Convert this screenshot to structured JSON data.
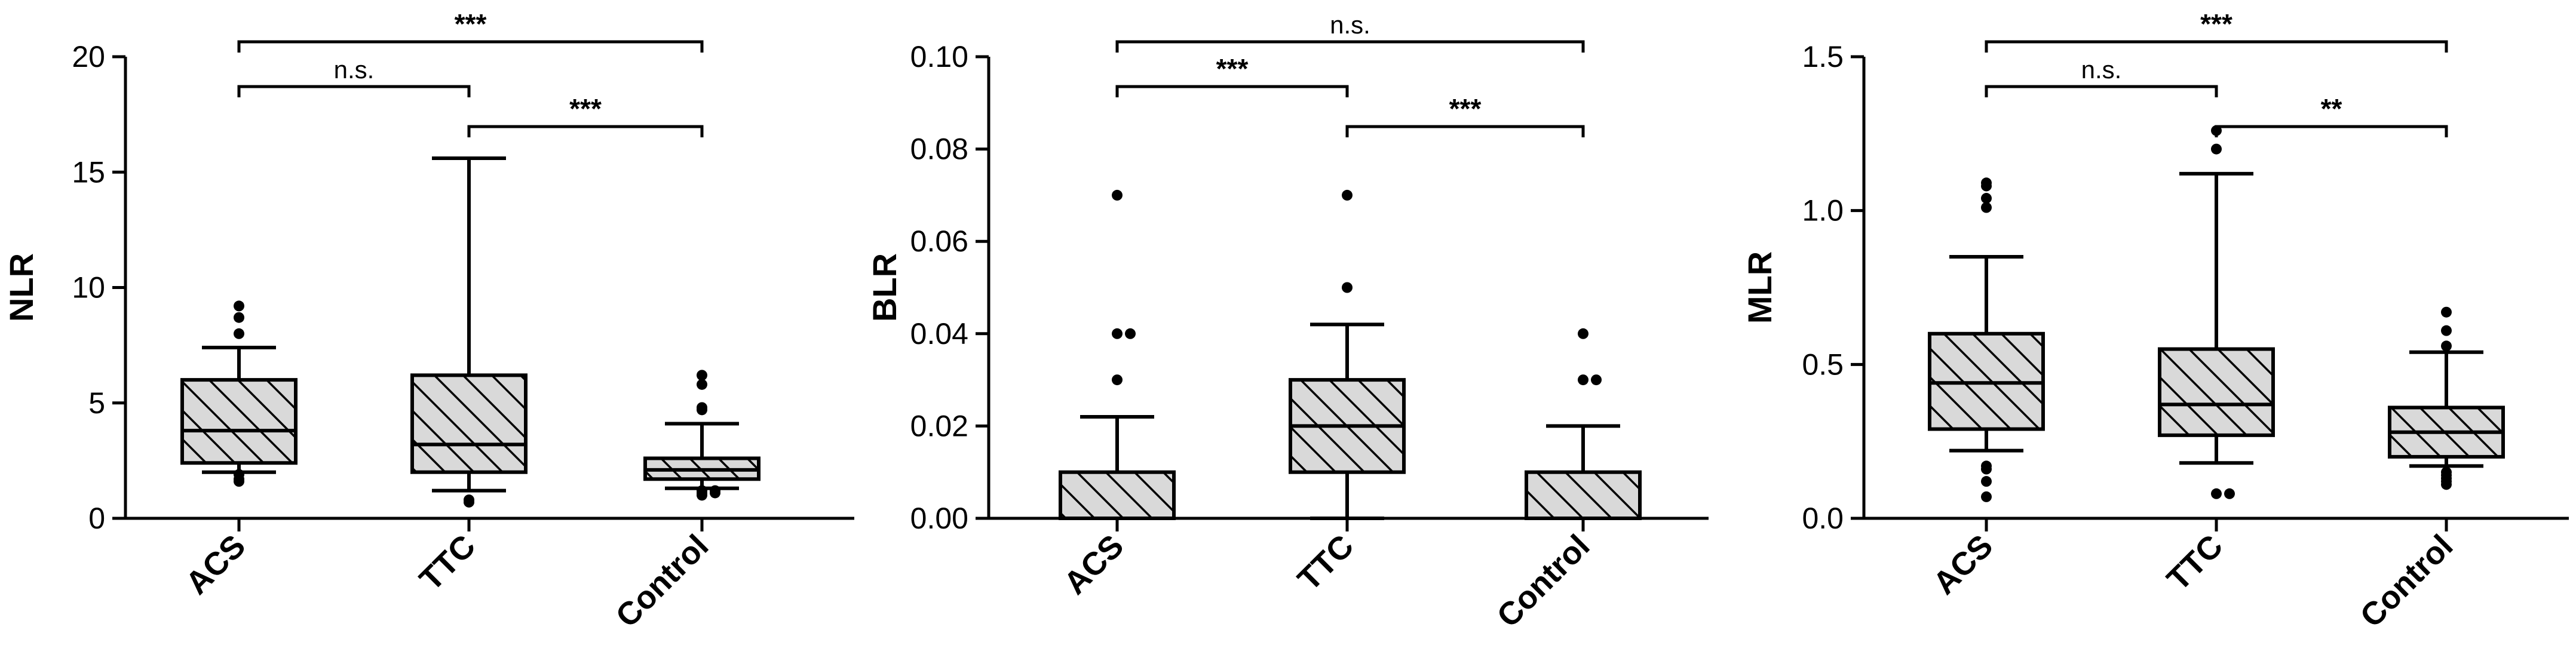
{
  "colors": {
    "box_fill": "#d9d9d9",
    "stroke": "#000000",
    "background": "#ffffff"
  },
  "chart_data": [
    {
      "type": "box",
      "ylabel": "NLR",
      "categories": [
        "ACS",
        "TTC",
        "Control"
      ],
      "ylim": [
        0,
        20
      ],
      "yticks": [
        "0",
        "5",
        "10",
        "15",
        "20"
      ],
      "boxes": [
        {
          "category": "ACS",
          "whisker_low": 2.0,
          "q1": 2.4,
          "median": 3.8,
          "q3": 6.0,
          "whisker_high": 7.4,
          "outliers": [
            1.6,
            1.7,
            1.9,
            8.0,
            8.7,
            9.2
          ]
        },
        {
          "category": "TTC",
          "whisker_low": 1.2,
          "q1": 2.0,
          "median": 3.2,
          "q3": 6.2,
          "whisker_high": 15.6,
          "outliers": [
            0.7,
            0.8
          ]
        },
        {
          "category": "Control",
          "whisker_low": 1.3,
          "q1": 1.7,
          "median": 2.1,
          "q3": 2.6,
          "whisker_high": 4.1,
          "outliers": [
            1.0,
            1.1,
            1.1,
            1.2,
            1.2,
            4.7,
            4.8,
            5.8,
            6.2
          ]
        }
      ],
      "comparisons": [
        {
          "pair": [
            "ACS",
            "TTC"
          ],
          "label": "n.s."
        },
        {
          "pair": [
            "TTC",
            "Control"
          ],
          "label": "***"
        },
        {
          "pair": [
            "ACS",
            "Control"
          ],
          "label": "***"
        }
      ]
    },
    {
      "type": "box",
      "ylabel": "BLR",
      "categories": [
        "ACS",
        "TTC",
        "Control"
      ],
      "ylim": [
        0,
        0.1
      ],
      "yticks": [
        "0.00",
        "0.02",
        "0.04",
        "0.06",
        "0.08",
        "0.10"
      ],
      "boxes": [
        {
          "category": "ACS",
          "whisker_low": 0.0,
          "q1": 0.0,
          "median": 0.0,
          "q3": 0.01,
          "whisker_high": 0.022,
          "outliers": [
            0.03,
            0.04,
            0.04,
            0.07
          ]
        },
        {
          "category": "TTC",
          "whisker_low": 0.0,
          "q1": 0.01,
          "median": 0.02,
          "q3": 0.03,
          "whisker_high": 0.042,
          "outliers": [
            0.05,
            0.07
          ]
        },
        {
          "category": "Control",
          "whisker_low": 0.0,
          "q1": 0.0,
          "median": 0.0,
          "q3": 0.01,
          "whisker_high": 0.02,
          "outliers": [
            0.03,
            0.03,
            0.04
          ]
        }
      ],
      "comparisons": [
        {
          "pair": [
            "ACS",
            "TTC"
          ],
          "label": "***"
        },
        {
          "pair": [
            "TTC",
            "Control"
          ],
          "label": "***"
        },
        {
          "pair": [
            "ACS",
            "Control"
          ],
          "label": "n.s."
        }
      ]
    },
    {
      "type": "box",
      "ylabel": "MLR",
      "categories": [
        "ACS",
        "TTC",
        "Control"
      ],
      "ylim": [
        0,
        1.5
      ],
      "yticks": [
        "0.0",
        "0.5",
        "1.0",
        "1.5"
      ],
      "boxes": [
        {
          "category": "ACS",
          "whisker_low": 0.22,
          "q1": 0.29,
          "median": 0.44,
          "q3": 0.6,
          "whisker_high": 0.85,
          "outliers": [
            0.07,
            0.12,
            0.16,
            0.17,
            1.01,
            1.04,
            1.08,
            1.09
          ]
        },
        {
          "category": "TTC",
          "whisker_low": 0.18,
          "q1": 0.27,
          "median": 0.37,
          "q3": 0.55,
          "whisker_high": 1.12,
          "outliers": [
            0.08,
            0.08,
            1.2,
            1.26
          ]
        },
        {
          "category": "Control",
          "whisker_low": 0.17,
          "q1": 0.2,
          "median": 0.28,
          "q3": 0.36,
          "whisker_high": 0.54,
          "outliers": [
            0.11,
            0.12,
            0.13,
            0.14,
            0.15,
            0.56,
            0.61,
            0.67
          ]
        }
      ],
      "comparisons": [
        {
          "pair": [
            "ACS",
            "TTC"
          ],
          "label": "n.s."
        },
        {
          "pair": [
            "TTC",
            "Control"
          ],
          "label": "**"
        },
        {
          "pair": [
            "ACS",
            "Control"
          ],
          "label": "***"
        }
      ]
    }
  ]
}
